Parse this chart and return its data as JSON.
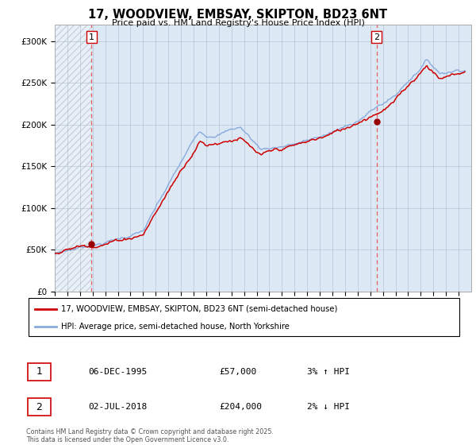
{
  "title": "17, WOODVIEW, EMBSAY, SKIPTON, BD23 6NT",
  "subtitle": "Price paid vs. HM Land Registry's House Price Index (HPI)",
  "ylim": [
    0,
    320000
  ],
  "yticks": [
    0,
    50000,
    100000,
    150000,
    200000,
    250000,
    300000
  ],
  "x_start_year": 1993,
  "x_end_year": 2026,
  "sale1_year": 1995.92,
  "sale1_price": 57000,
  "sale1_label": "1",
  "sale2_year": 2018.5,
  "sale2_price": 204000,
  "sale2_label": "2",
  "legend_line1": "17, WOODVIEW, EMBSAY, SKIPTON, BD23 6NT (semi-detached house)",
  "legend_line2": "HPI: Average price, semi-detached house, North Yorkshire",
  "info1_label": "1",
  "info1_date": "06-DEC-1995",
  "info1_price": "£57,000",
  "info1_hpi": "3% ↑ HPI",
  "info2_label": "2",
  "info2_date": "02-JUL-2018",
  "info2_price": "£204,000",
  "info2_hpi": "2% ↓ HPI",
  "footer": "Contains HM Land Registry data © Crown copyright and database right 2025.\nThis data is licensed under the Open Government Licence v3.0.",
  "line_color_red": "#cc0000",
  "line_color_blue": "#88aadd",
  "bg_color": "#dde8f5",
  "hatch_color": "#bbbbcc",
  "grid_color": "#aabbcc",
  "sale_marker_color": "#990000"
}
